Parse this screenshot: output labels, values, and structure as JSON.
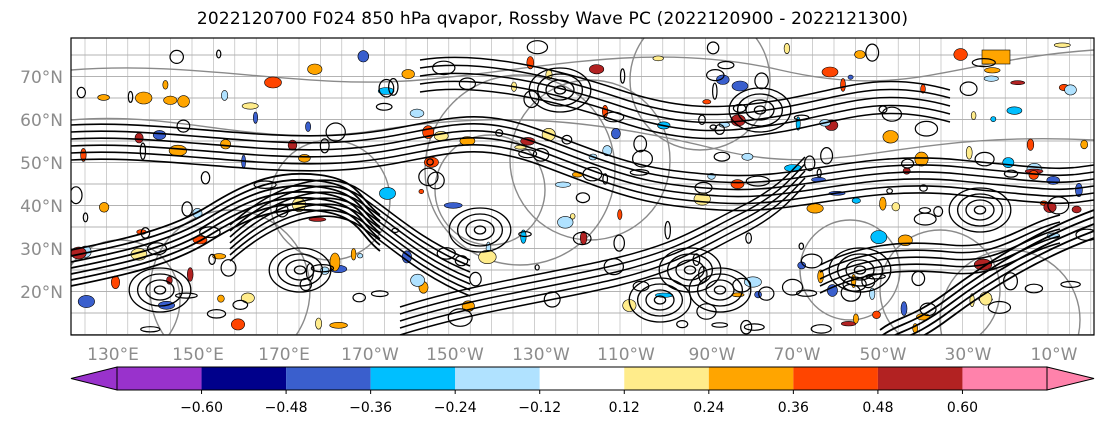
{
  "title": "2022120700 F024 850 hPa qvapor, Rossby Wave PC (2022120900 - 2022121300)",
  "map": {
    "lat_labels": [
      "70°N",
      "60°N",
      "50°N",
      "40°N",
      "30°N",
      "20°N"
    ],
    "lon_labels": [
      "130°E",
      "150°E",
      "170°E",
      "170°W",
      "150°W",
      "130°W",
      "110°W",
      "90°W",
      "70°W",
      "50°W",
      "30°W",
      "10°W"
    ],
    "gridlines": true,
    "contour_color": "#000000",
    "gray_contour_color": "#8a8a8a"
  },
  "colorbar": {
    "ticks": [
      "−0.60",
      "−0.48",
      "−0.36",
      "−0.24",
      "−0.12",
      "0.12",
      "0.24",
      "0.36",
      "0.48",
      "0.60"
    ],
    "colors": [
      "#9932cc",
      "#00008b",
      "#3a5fcd",
      "#00bfff",
      "#b0e2ff",
      "#ffffff",
      "#ffec8b",
      "#ffa500",
      "#ff4500",
      "#b22222",
      "#ff82ab",
      "#ff82ab"
    ]
  }
}
